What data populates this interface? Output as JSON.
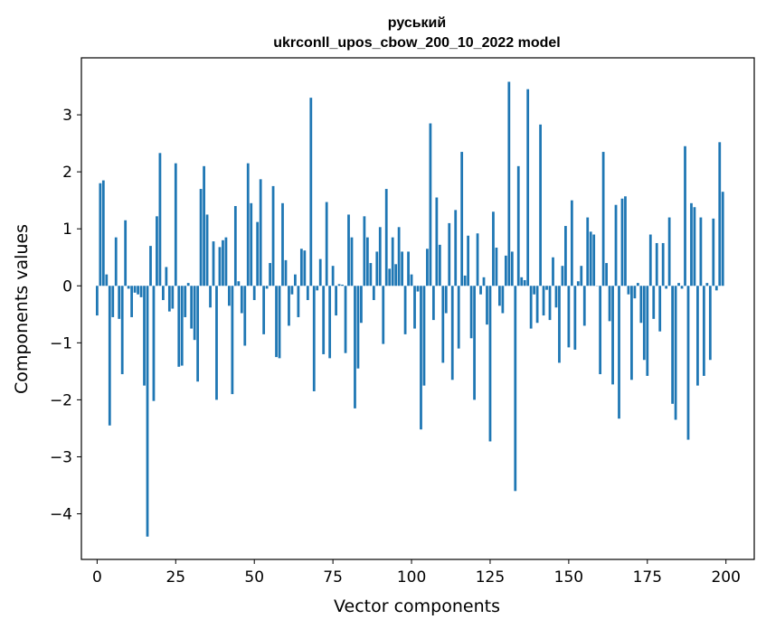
{
  "chart_data": {
    "type": "bar",
    "title_line1": "руський",
    "title_line2": "ukrconll_upos_cbow_200_10_2022 model",
    "xlabel": "Vector components",
    "ylabel": "Components values",
    "xlim": [
      -5,
      209
    ],
    "ylim": [
      -4.8,
      4.0
    ],
    "xticks": [
      0,
      25,
      50,
      75,
      100,
      125,
      150,
      175,
      200
    ],
    "xtick_labels": [
      "0",
      "25",
      "50",
      "75",
      "100",
      "125",
      "150",
      "175",
      "200"
    ],
    "yticks": [
      -4,
      -3,
      -2,
      -1,
      0,
      1,
      2,
      3
    ],
    "ytick_labels": [
      "−4",
      "−3",
      "−2",
      "−1",
      "0",
      "1",
      "2",
      "3"
    ],
    "bar_color": "#1f77b4",
    "values": [
      -0.52,
      1.8,
      1.85,
      0.2,
      -2.45,
      -0.55,
      0.85,
      -0.58,
      -1.55,
      1.15,
      -0.05,
      -0.55,
      -0.12,
      -0.15,
      -0.2,
      -1.75,
      -4.4,
      0.7,
      -2.02,
      1.22,
      2.33,
      -0.25,
      0.33,
      -0.45,
      -0.4,
      2.15,
      -1.42,
      -1.4,
      -0.55,
      0.05,
      -0.75,
      -0.95,
      -1.68,
      1.7,
      2.1,
      1.25,
      -0.38,
      0.78,
      -2.0,
      0.68,
      0.8,
      0.85,
      -0.35,
      -1.9,
      1.4,
      0.08,
      -0.48,
      -1.05,
      2.15,
      1.45,
      -0.25,
      1.12,
      1.87,
      -0.85,
      -0.05,
      0.4,
      1.75,
      -1.25,
      -1.27,
      1.45,
      0.45,
      -0.7,
      -0.15,
      0.2,
      -0.55,
      0.65,
      0.62,
      -0.25,
      3.3,
      -1.85,
      -0.08,
      0.47,
      -1.2,
      1.47,
      -1.27,
      0.35,
      -0.52,
      0.03,
      0.02,
      -1.18,
      1.25,
      0.85,
      -2.15,
      -1.45,
      -0.65,
      1.22,
      0.85,
      0.4,
      -0.25,
      0.6,
      1.03,
      -1.02,
      1.7,
      0.3,
      0.85,
      0.38,
      1.03,
      0.6,
      -0.85,
      0.6,
      0.2,
      -0.75,
      -0.1,
      -2.52,
      -1.75,
      0.65,
      2.85,
      -0.6,
      1.55,
      0.72,
      -1.35,
      -0.48,
      1.1,
      -1.65,
      1.33,
      -1.1,
      2.35,
      0.18,
      0.88,
      -0.92,
      -2.0,
      0.92,
      -0.15,
      0.15,
      -0.68,
      -2.73,
      1.3,
      0.67,
      -0.35,
      -0.48,
      0.53,
      3.58,
      0.6,
      -3.6,
      2.1,
      0.15,
      0.1,
      3.45,
      -0.75,
      -0.15,
      -0.65,
      2.83,
      -0.52,
      -0.07,
      -0.6,
      0.5,
      -0.38,
      -1.35,
      0.35,
      1.05,
      -1.08,
      1.5,
      -1.12,
      0.08,
      0.35,
      -0.7,
      1.2,
      0.95,
      0.9,
      0.0,
      -1.55,
      2.35,
      0.4,
      -0.62,
      -1.73,
      1.42,
      -2.33,
      1.53,
      1.57,
      -0.15,
      -1.65,
      -0.22,
      0.05,
      -0.65,
      -1.3,
      -1.58,
      0.9,
      -0.58,
      0.75,
      -0.8,
      0.75,
      -0.05,
      1.2,
      -2.07,
      -2.35,
      0.05,
      -0.05,
      2.45,
      -2.7,
      1.45,
      1.38,
      -1.75,
      1.2,
      -1.58,
      0.05,
      -1.3,
      1.18,
      -0.08,
      2.52,
      1.65
    ]
  }
}
